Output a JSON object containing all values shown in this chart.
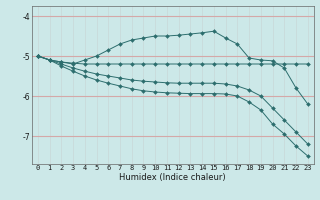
{
  "title": "",
  "xlabel": "Humidex (Indice chaleur)",
  "bg_color": "#cce8e8",
  "line_color": "#2d6e6e",
  "grid_color_x": "#c8d8d8",
  "grid_color_y": "#d4a8a8",
  "xlim": [
    -0.5,
    23.5
  ],
  "ylim": [
    -7.7,
    -3.75
  ],
  "yticks": [
    -7,
    -6,
    -5,
    -4
  ],
  "xticks": [
    0,
    1,
    2,
    3,
    4,
    5,
    6,
    7,
    8,
    9,
    10,
    11,
    12,
    13,
    14,
    15,
    16,
    17,
    18,
    19,
    20,
    21,
    22,
    23
  ],
  "lines": [
    {
      "x": [
        0,
        1,
        2,
        3,
        4,
        5,
        6,
        7,
        8,
        9,
        10,
        11,
        12,
        13,
        14,
        15,
        16,
        17,
        18,
        19,
        20,
        21,
        22,
        23
      ],
      "y": [
        -5.0,
        -5.1,
        -5.15,
        -5.2,
        -5.1,
        -5.0,
        -4.85,
        -4.7,
        -4.6,
        -4.55,
        -4.5,
        -4.5,
        -4.48,
        -4.45,
        -4.42,
        -4.38,
        -4.55,
        -4.7,
        -5.05,
        -5.1,
        -5.12,
        -5.3,
        -5.8,
        -6.2
      ]
    },
    {
      "x": [
        0,
        1,
        2,
        3,
        4,
        5,
        6,
        7,
        8,
        9,
        10,
        11,
        12,
        13,
        14,
        15,
        16,
        17,
        18,
        19,
        20,
        21,
        22,
        23
      ],
      "y": [
        -5.0,
        -5.1,
        -5.15,
        -5.18,
        -5.2,
        -5.2,
        -5.2,
        -5.2,
        -5.2,
        -5.2,
        -5.2,
        -5.2,
        -5.2,
        -5.2,
        -5.2,
        -5.2,
        -5.2,
        -5.2,
        -5.2,
        -5.2,
        -5.2,
        -5.2,
        -5.2,
        -5.2
      ]
    },
    {
      "x": [
        0,
        1,
        2,
        3,
        4,
        5,
        6,
        7,
        8,
        9,
        10,
        11,
        12,
        13,
        14,
        15,
        16,
        17,
        18,
        19,
        20,
        21,
        22,
        23
      ],
      "y": [
        -5.0,
        -5.1,
        -5.2,
        -5.3,
        -5.38,
        -5.45,
        -5.5,
        -5.55,
        -5.6,
        -5.63,
        -5.65,
        -5.67,
        -5.68,
        -5.68,
        -5.68,
        -5.68,
        -5.7,
        -5.75,
        -5.85,
        -6.0,
        -6.3,
        -6.6,
        -6.9,
        -7.2
      ]
    },
    {
      "x": [
        0,
        1,
        2,
        3,
        4,
        5,
        6,
        7,
        8,
        9,
        10,
        11,
        12,
        13,
        14,
        15,
        16,
        17,
        18,
        19,
        20,
        21,
        22,
        23
      ],
      "y": [
        -5.0,
        -5.1,
        -5.25,
        -5.38,
        -5.5,
        -5.6,
        -5.68,
        -5.75,
        -5.82,
        -5.87,
        -5.9,
        -5.92,
        -5.93,
        -5.94,
        -5.94,
        -5.94,
        -5.95,
        -6.0,
        -6.15,
        -6.35,
        -6.7,
        -6.95,
        -7.25,
        -7.5
      ]
    }
  ]
}
